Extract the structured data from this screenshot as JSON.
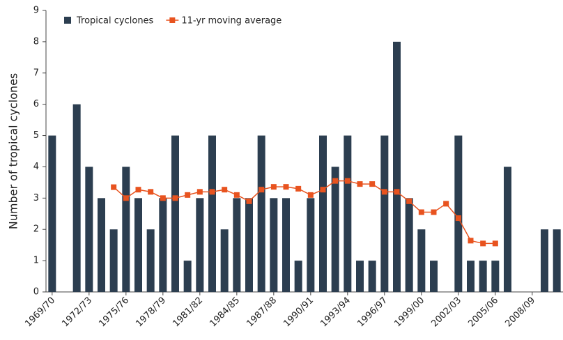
{
  "chart_data": {
    "type": "bar",
    "y_label": "Number of tropical cyclones",
    "categories": [
      "1969/70",
      null,
      null,
      "1972/73",
      null,
      null,
      "1975/76",
      null,
      null,
      "1978/79",
      null,
      null,
      "1981/82",
      null,
      null,
      "1984/85",
      null,
      null,
      "1987/88",
      null,
      null,
      "1990/91",
      null,
      null,
      "1993/94",
      null,
      null,
      "1996/97",
      null,
      null,
      "1999/00",
      null,
      null,
      "2002/03",
      null,
      null,
      "2005/06",
      null,
      null,
      "2008/09",
      null,
      null
    ],
    "series": [
      {
        "name": "Tropical cyclones",
        "type": "bar",
        "color": "#2c3e50",
        "values": [
          5,
          0,
          6,
          4,
          3,
          2,
          4,
          3,
          2,
          3,
          5,
          1,
          3,
          5,
          2,
          3,
          3,
          5,
          3,
          3,
          1,
          3,
          5,
          4,
          5,
          1,
          1,
          5,
          8,
          3,
          2,
          1,
          0,
          5,
          1,
          1,
          1,
          4,
          0,
          0,
          2,
          2
        ]
      },
      {
        "name": "11-yr moving average",
        "type": "line",
        "color": "#e8531f",
        "values": [
          null,
          null,
          null,
          null,
          null,
          3.35,
          3.0,
          3.27,
          3.2,
          3.0,
          3.0,
          3.1,
          3.2,
          3.2,
          3.27,
          3.1,
          2.9,
          3.27,
          3.36,
          3.36,
          3.3,
          3.1,
          3.27,
          3.55,
          3.55,
          3.45,
          3.45,
          3.2,
          3.2,
          2.9,
          2.55,
          2.55,
          2.82,
          2.36,
          1.64,
          1.55,
          1.55,
          null,
          null,
          null,
          null,
          null
        ]
      }
    ],
    "ylim": [
      0,
      9
    ],
    "yticks": [
      0,
      1,
      2,
      3,
      4,
      5,
      6,
      7,
      8,
      9
    ]
  }
}
